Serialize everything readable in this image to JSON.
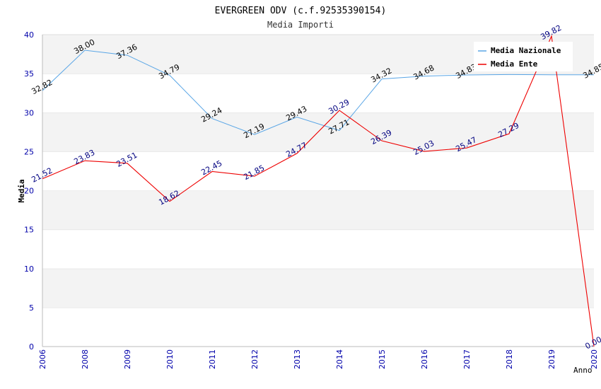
{
  "chart_data": {
    "type": "line",
    "title": "EVERGREEN ODV (c.f.92535390154)",
    "subtitle": "Media Importi",
    "xlabel": "Anno",
    "ylabel": "Media",
    "categories": [
      "2006",
      "2008",
      "2009",
      "2010",
      "2011",
      "2012",
      "2013",
      "2014",
      "2015",
      "2016",
      "2017",
      "2018",
      "2019",
      "2020"
    ],
    "ylim": [
      0,
      40
    ],
    "yticks": [
      0,
      5,
      10,
      15,
      20,
      25,
      30,
      35,
      40
    ],
    "grid": "horizontal-bands",
    "legend_position": "top-right",
    "series": [
      {
        "name": "Media Nazionale",
        "color": "#5aa6e6",
        "label_color": "#000000",
        "values": [
          32.82,
          38.0,
          37.36,
          34.79,
          29.24,
          27.19,
          29.43,
          27.71,
          34.32,
          34.68,
          34.83,
          34.89,
          34.85,
          34.85
        ],
        "labels": [
          "32.82",
          "38.00",
          "37.36",
          "34.79",
          "29.24",
          "27.19",
          "29.43",
          "27.71",
          "34.32",
          "34.68",
          "34.83",
          "",
          "",
          "34.85"
        ]
      },
      {
        "name": "Media Ente",
        "color": "#ee0000",
        "label_color": "#000080",
        "values": [
          21.52,
          23.83,
          23.51,
          18.62,
          22.45,
          21.85,
          24.77,
          30.29,
          26.39,
          25.03,
          25.47,
          27.29,
          39.82,
          0.0
        ],
        "labels": [
          "21.52",
          "23.83",
          "23.51",
          "18.62",
          "22.45",
          "21.85",
          "24.77",
          "30.29",
          "26.39",
          "25.03",
          "25.47",
          "27.29",
          "39.82",
          "0.00"
        ]
      }
    ]
  }
}
